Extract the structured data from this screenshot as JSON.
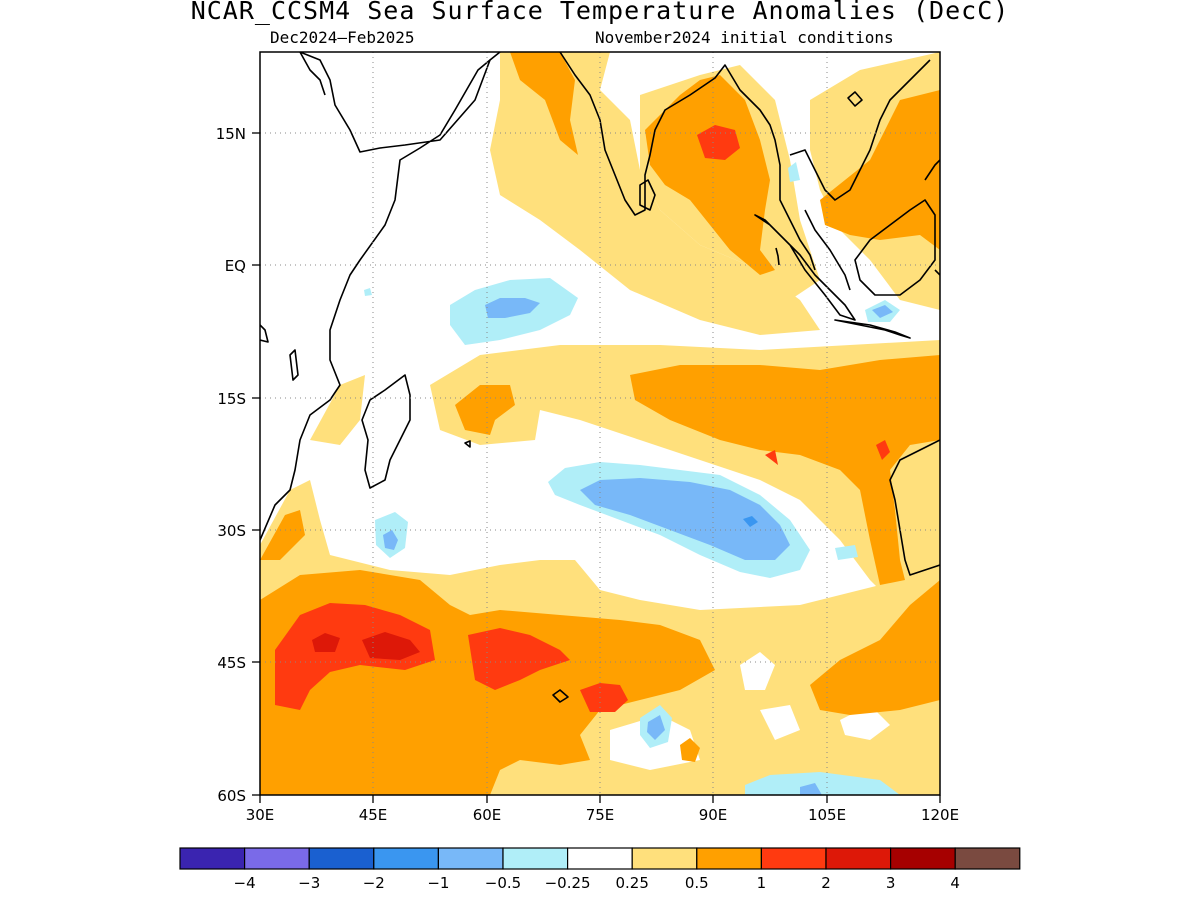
{
  "header": {
    "title": "NCAR_CCSM4 Sea Surface Temperature Anomalies (DecC)",
    "season": "Dec2024–Feb2025",
    "init": "November2024 initial conditions"
  },
  "axes": {
    "lat_labels": [
      "15N",
      "EQ",
      "15S",
      "30S",
      "45S",
      "60S"
    ],
    "lon_labels": [
      "30E",
      "45E",
      "60E",
      "75E",
      "90E",
      "105E",
      "120E"
    ]
  },
  "legend": {
    "colors": [
      "#3a24b0",
      "#7a6ae8",
      "#1a60d0",
      "#3a96f0",
      "#78b8f8",
      "#b0eef8",
      "#ffffff",
      "#ffe07c",
      "#ffa000",
      "#ff3a10",
      "#dd1808",
      "#a60000",
      "#7a4a40"
    ],
    "labels": [
      "−4",
      "−3",
      "−2",
      "−1",
      "−0.5",
      "−0.25",
      "0.25",
      "0.5",
      "1",
      "2",
      "3",
      "4"
    ]
  },
  "colors": {
    "yellow": "#ffe07c",
    "orange": "#ffa000",
    "red": "#ff3a10",
    "darkred": "#dd1808",
    "lightblue": "#b0eef8",
    "blue": "#78b8f8",
    "midblue": "#3a96f0"
  }
}
